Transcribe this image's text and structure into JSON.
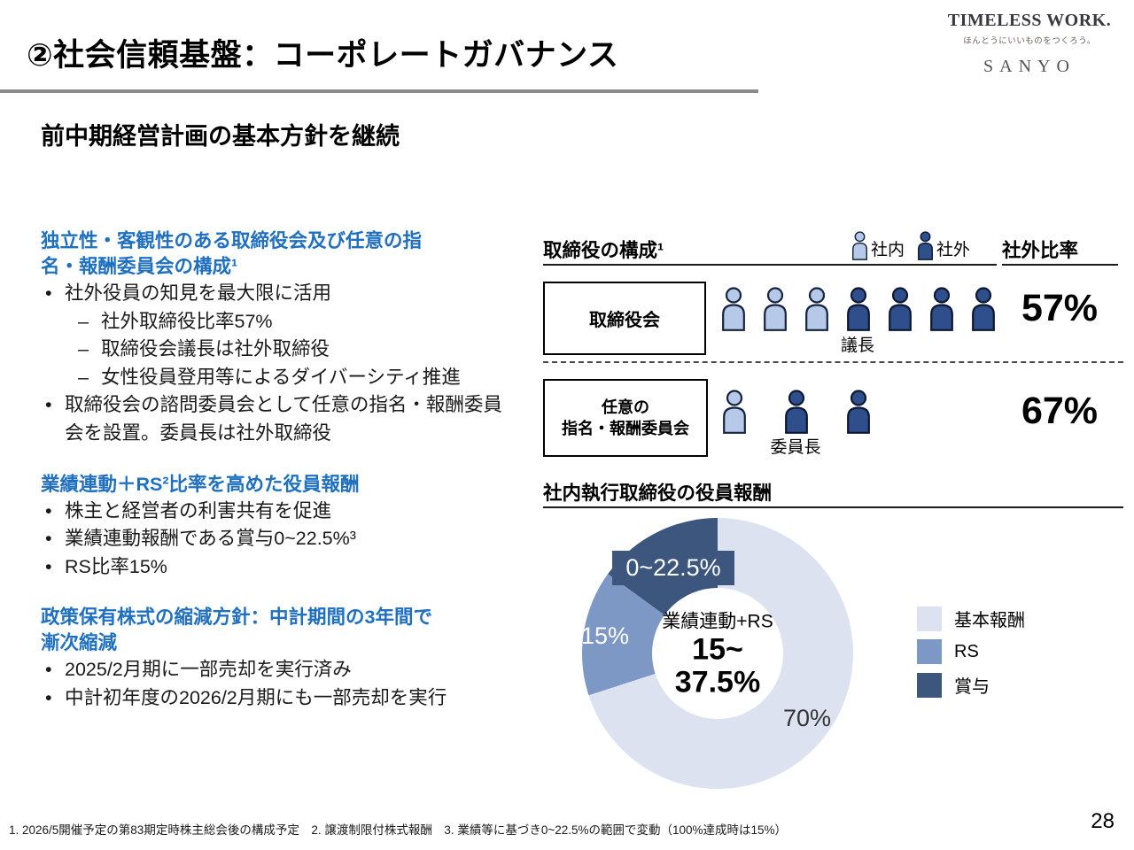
{
  "header": {
    "title": "②社会信頼基盤：コーポレートガバナンス",
    "subtitle": "前中期経営計画の基本方針を継続",
    "logo": {
      "main": "TIMELESS WORK.",
      "tagline": "ほんとうにいいものをつくろう。",
      "brand": "SANYO"
    }
  },
  "left": {
    "s1": {
      "heading": "独立性・客観性のある取締役会及び任意の指名・報酬委員会の構成¹",
      "b1": "社外役員の知見を最大限に活用",
      "b1_1": "社外取締役比率57%",
      "b1_2": "取締役会議長は社外取締役",
      "b1_3": "女性役員登用等によるダイバーシティ推進",
      "b2": "取締役会の諮問委員会として任意の指名・報酬委員会を設置。委員長は社外取締役"
    },
    "s2": {
      "heading": "業績連動＋RS²比率を高めた役員報酬",
      "b1": "株主と経営者の利害共有を促進",
      "b2": "業績連動報酬である賞与0~22.5%³",
      "b3": "RS比率15%"
    },
    "s3": {
      "heading": "政策保有株式の縮減方針：中計期間の3年間で漸次縮減",
      "b1": "2025/2月期に一部売却を実行済み",
      "b2": "中計初年度の2026/2月期にも一部売却を実行"
    }
  },
  "board": {
    "title": "取締役の構成¹",
    "legend_internal": "社内",
    "legend_external": "社外",
    "ratio_header": "社外比率",
    "row1": {
      "label": "取締役会",
      "members": [
        "社内",
        "社内",
        "社内",
        "社外",
        "社外",
        "社外",
        "社外"
      ],
      "chair_label": "議長",
      "ratio": "57%"
    },
    "row2": {
      "label_line1": "任意の",
      "label_line2": "指名・報酬委員会",
      "members": [
        "社内",
        "社外",
        "社外"
      ],
      "chair_label": "委員長",
      "ratio": "67%"
    }
  },
  "chart_data": {
    "type": "pie",
    "donut": true,
    "title": "社内執行取締役の役員報酬",
    "start_angle_deg": 0,
    "unit": "%",
    "slices": [
      {
        "label": "基本報酬",
        "value": 70,
        "display": "70%",
        "color": "#dce2ef"
      },
      {
        "label": "RS",
        "value": 15,
        "display": "15%",
        "color": "#7e98c6"
      },
      {
        "label": "賞与",
        "value": 15,
        "display": "0~22.5%",
        "color": "#3c567e"
      }
    ],
    "center": {
      "line1": "業績連動+RS",
      "line2": "15~",
      "line3": "37.5%"
    },
    "legend_position": "right"
  },
  "footer": {
    "note": "1. 2026/5開催予定の第83期定時株主総会後の構成予定　2. 譲渡制限付株式報酬　3. 業績等に基づき0~22.5%の範囲で変動（100%達成時は15%）",
    "page": "28"
  }
}
